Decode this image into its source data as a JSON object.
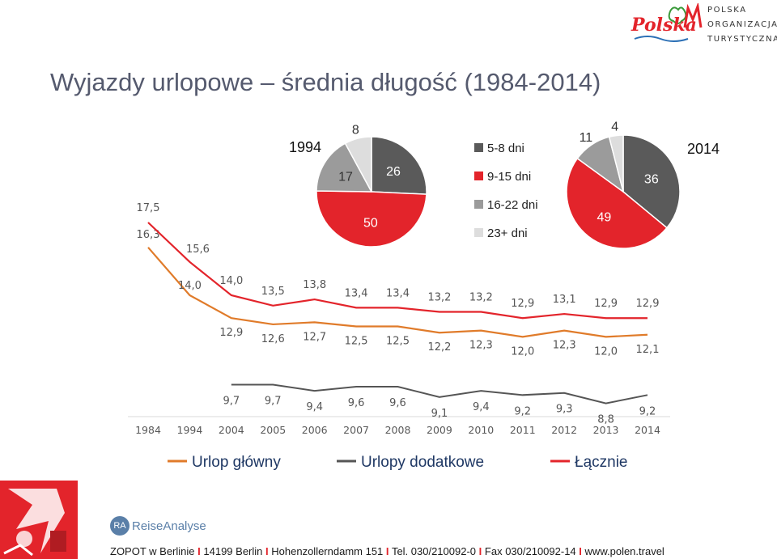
{
  "title": "Wyjazdy urlopowe – średnia długość (1984-2014)",
  "logo": {
    "word": "Polska",
    "lines": [
      "POLSKA",
      "ORGANIZACJA",
      "TURYSTYCZNA"
    ]
  },
  "colors": {
    "main": "#e07b2a",
    "additional": "#555555",
    "total": "#e3242b",
    "pie_dark": "#5a5a5a",
    "pie_red": "#e3242b",
    "pie_gray": "#9b9b9b",
    "pie_light": "#dddddd",
    "brand_red": "#e3242b"
  },
  "chart_data": [
    {
      "type": "line",
      "x": [
        "1984",
        "1994",
        "2004",
        "2005",
        "2006",
        "2007",
        "2008",
        "2009",
        "2010",
        "2011",
        "2012",
        "2013",
        "2014"
      ],
      "series": [
        {
          "name": "Urlop główny",
          "values": [
            16.3,
            14.0,
            12.9,
            12.6,
            12.7,
            12.5,
            12.5,
            12.2,
            12.3,
            12.0,
            12.3,
            12.0,
            12.1
          ],
          "labels": [
            "16,3",
            "14,0",
            "12,9",
            "12,6",
            "12,7",
            "12,5",
            "12,5",
            "12,2",
            "12,3",
            "12,0",
            "12,3",
            "12,0",
            "12,1"
          ],
          "color": "#e07b2a"
        },
        {
          "name": "Urlopy dodatkowe",
          "values": [
            null,
            null,
            9.7,
            9.7,
            9.4,
            9.6,
            9.6,
            9.1,
            9.4,
            9.2,
            9.3,
            8.8,
            9.2
          ],
          "labels": [
            "",
            "",
            "9,7",
            "9,7",
            "9,4",
            "9,6",
            "9,6",
            "9,1",
            "9,4",
            "9,2",
            "9,3",
            "8,8",
            "9,2"
          ],
          "color": "#555555"
        },
        {
          "name": "Łącznie",
          "values": [
            17.5,
            15.6,
            14.0,
            13.5,
            13.8,
            13.4,
            13.4,
            13.2,
            13.2,
            12.9,
            13.1,
            12.9,
            12.9
          ],
          "labels": [
            "17,5",
            "15,6",
            "14,0",
            "13,5",
            "13,8",
            "13,4",
            "13,4",
            "13,2",
            "13,2",
            "12,9",
            "13,1",
            "12,9",
            "12,9"
          ],
          "color": "#e3242b"
        }
      ],
      "legend": "bottom",
      "grid": false
    },
    {
      "type": "pie",
      "title": "1994",
      "categories": [
        "5-8 dni",
        "9-15 dni",
        "16-22 dni",
        "23+ dni"
      ],
      "values": [
        26,
        50,
        17,
        8
      ],
      "labels": [
        "26",
        "50",
        "17",
        "8"
      ],
      "colors": [
        "#5a5a5a",
        "#e3242b",
        "#9b9b9b",
        "#dddddd"
      ]
    },
    {
      "type": "pie",
      "title": "2014",
      "categories": [
        "5-8 dni",
        "9-15 dni",
        "16-22 dni",
        "23+ dni"
      ],
      "values": [
        36,
        49,
        11,
        4
      ],
      "labels": [
        "36",
        "49",
        "11",
        "4"
      ],
      "colors": [
        "#5a5a5a",
        "#e3242b",
        "#9b9b9b",
        "#dddddd"
      ]
    }
  ],
  "pie_legend": [
    "5-8 dni",
    "9-15 dni",
    "16-22 dni",
    "23+ dni"
  ],
  "ra_logo": {
    "badge": "RA",
    "text": "ReiseAnalyse"
  },
  "footer": {
    "parts": [
      "ZOPOT w Berlinie",
      "14199 Berlin",
      "Hohenzollerndamm 151",
      "Tel. 030/210092-0",
      "Fax 030/210092-14",
      "www.polen.travel"
    ],
    "separator": "I"
  }
}
